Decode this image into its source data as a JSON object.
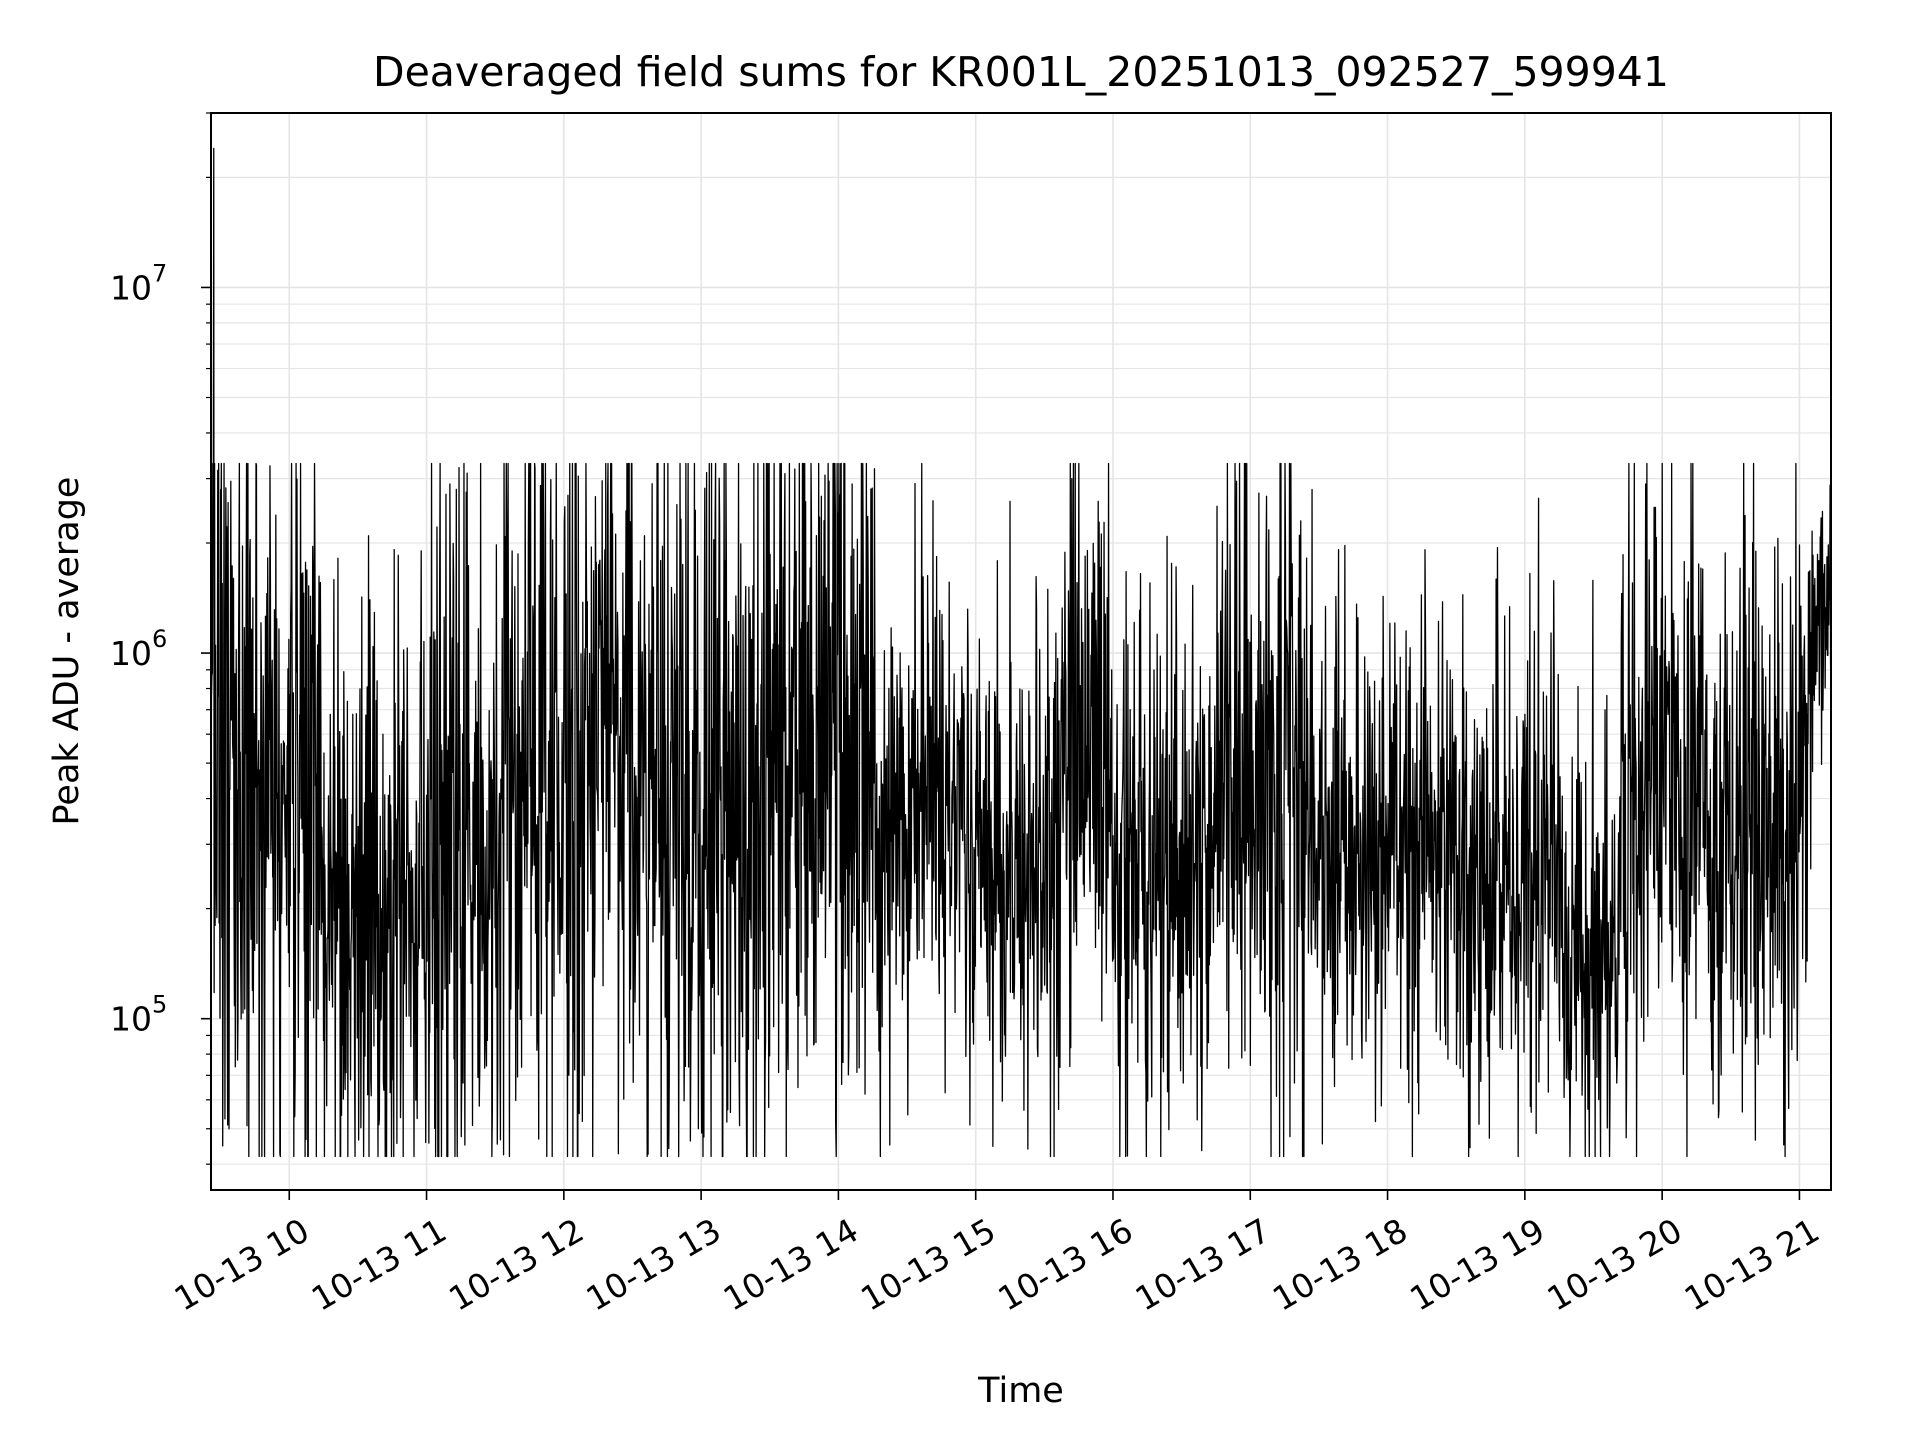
{
  "chart_data": {
    "type": "line",
    "title": "Deaveraged field sums for KR001L_20251013_092527_599941",
    "xlabel": "Time",
    "ylabel": "Peak ADU - average",
    "yscale": "log",
    "ylim": [
      34000,
      30000000
    ],
    "xlim_hours": [
      9.43,
      21.23
    ],
    "grid": true,
    "line_color": "#000000",
    "grid_color": "#e5e5e5",
    "x_tick_hours": [
      10,
      11,
      12,
      13,
      14,
      15,
      16,
      17,
      18,
      19,
      20,
      21
    ],
    "x_tick_labels": [
      "10-13 10",
      "10-13 11",
      "10-13 12",
      "10-13 13",
      "10-13 14",
      "10-13 15",
      "10-13 16",
      "10-13 17",
      "10-13 18",
      "10-13 19",
      "10-13 20",
      "10-13 21"
    ],
    "y_ticks": [
      {
        "value": 100000,
        "base": "10",
        "exp": "5"
      },
      {
        "value": 1000000,
        "base": "10",
        "exp": "6"
      },
      {
        "value": 10000000,
        "base": "10",
        "exp": "7"
      }
    ],
    "series": [
      {
        "name": "Peak ADU - average",
        "segments": [
          {
            "t0": 9.43,
            "t1": 9.7,
            "level": 650000,
            "spread": 0.6
          },
          {
            "t0": 9.7,
            "t1": 10.2,
            "level": 420000,
            "spread": 0.55
          },
          {
            "t0": 10.2,
            "t1": 10.95,
            "level": 190000,
            "spread": 0.4
          },
          {
            "t0": 10.95,
            "t1": 11.3,
            "level": 300000,
            "spread": 0.55
          },
          {
            "t0": 11.3,
            "t1": 11.55,
            "level": 200000,
            "spread": 0.4
          },
          {
            "t0": 11.55,
            "t1": 12.5,
            "level": 550000,
            "spread": 0.55
          },
          {
            "t0": 12.5,
            "t1": 13.05,
            "level": 330000,
            "spread": 0.45
          },
          {
            "t0": 13.05,
            "t1": 13.6,
            "level": 420000,
            "spread": 0.6
          },
          {
            "t0": 13.6,
            "t1": 14.25,
            "level": 650000,
            "spread": 0.55
          },
          {
            "t0": 14.25,
            "t1": 15.1,
            "level": 330000,
            "spread": 0.3
          },
          {
            "t0": 15.1,
            "t1": 15.5,
            "level": 240000,
            "spread": 0.35
          },
          {
            "t0": 15.5,
            "t1": 16.0,
            "level": 420000,
            "spread": 0.45
          },
          {
            "t0": 16.0,
            "t1": 16.75,
            "level": 240000,
            "spread": 0.32
          },
          {
            "t0": 16.75,
            "t1": 17.4,
            "level": 480000,
            "spread": 0.45
          },
          {
            "t0": 17.4,
            "t1": 18.5,
            "level": 300000,
            "spread": 0.3
          },
          {
            "t0": 18.5,
            "t1": 19.3,
            "level": 230000,
            "spread": 0.3
          },
          {
            "t0": 19.3,
            "t1": 19.7,
            "level": 150000,
            "spread": 0.25
          },
          {
            "t0": 19.7,
            "t1": 20.3,
            "level": 420000,
            "spread": 0.4
          },
          {
            "t0": 20.3,
            "t1": 21.05,
            "level": 300000,
            "spread": 0.4
          },
          {
            "t0": 21.05,
            "t1": 21.23,
            "level": 1200000,
            "spread": 0.2
          }
        ],
        "spikes": [
          {
            "t": 9.45,
            "value": 24000000
          },
          {
            "t": 9.46,
            "value": 180000
          },
          {
            "t": 9.5,
            "value": 2800000
          },
          {
            "t": 10.04,
            "value": 54000
          },
          {
            "t": 10.75,
            "value": 68000
          },
          {
            "t": 11.17,
            "value": 2900000
          },
          {
            "t": 11.79,
            "value": 3200000
          },
          {
            "t": 12.03,
            "value": 2700000
          },
          {
            "t": 12.98,
            "value": 50000
          },
          {
            "t": 13.28,
            "value": 51000
          },
          {
            "t": 13.98,
            "value": 52000
          },
          {
            "t": 14.1,
            "value": 2900000
          },
          {
            "t": 15.25,
            "value": 2600000
          },
          {
            "t": 15.38,
            "value": 44000
          },
          {
            "t": 15.7,
            "value": 3000000
          },
          {
            "t": 16.9,
            "value": 2950000
          },
          {
            "t": 17.45,
            "value": 2800000
          },
          {
            "t": 19.1,
            "value": 2650000
          },
          {
            "t": 19.88,
            "value": 2900000
          },
          {
            "t": 20.7,
            "value": 75000
          }
        ]
      }
    ]
  }
}
